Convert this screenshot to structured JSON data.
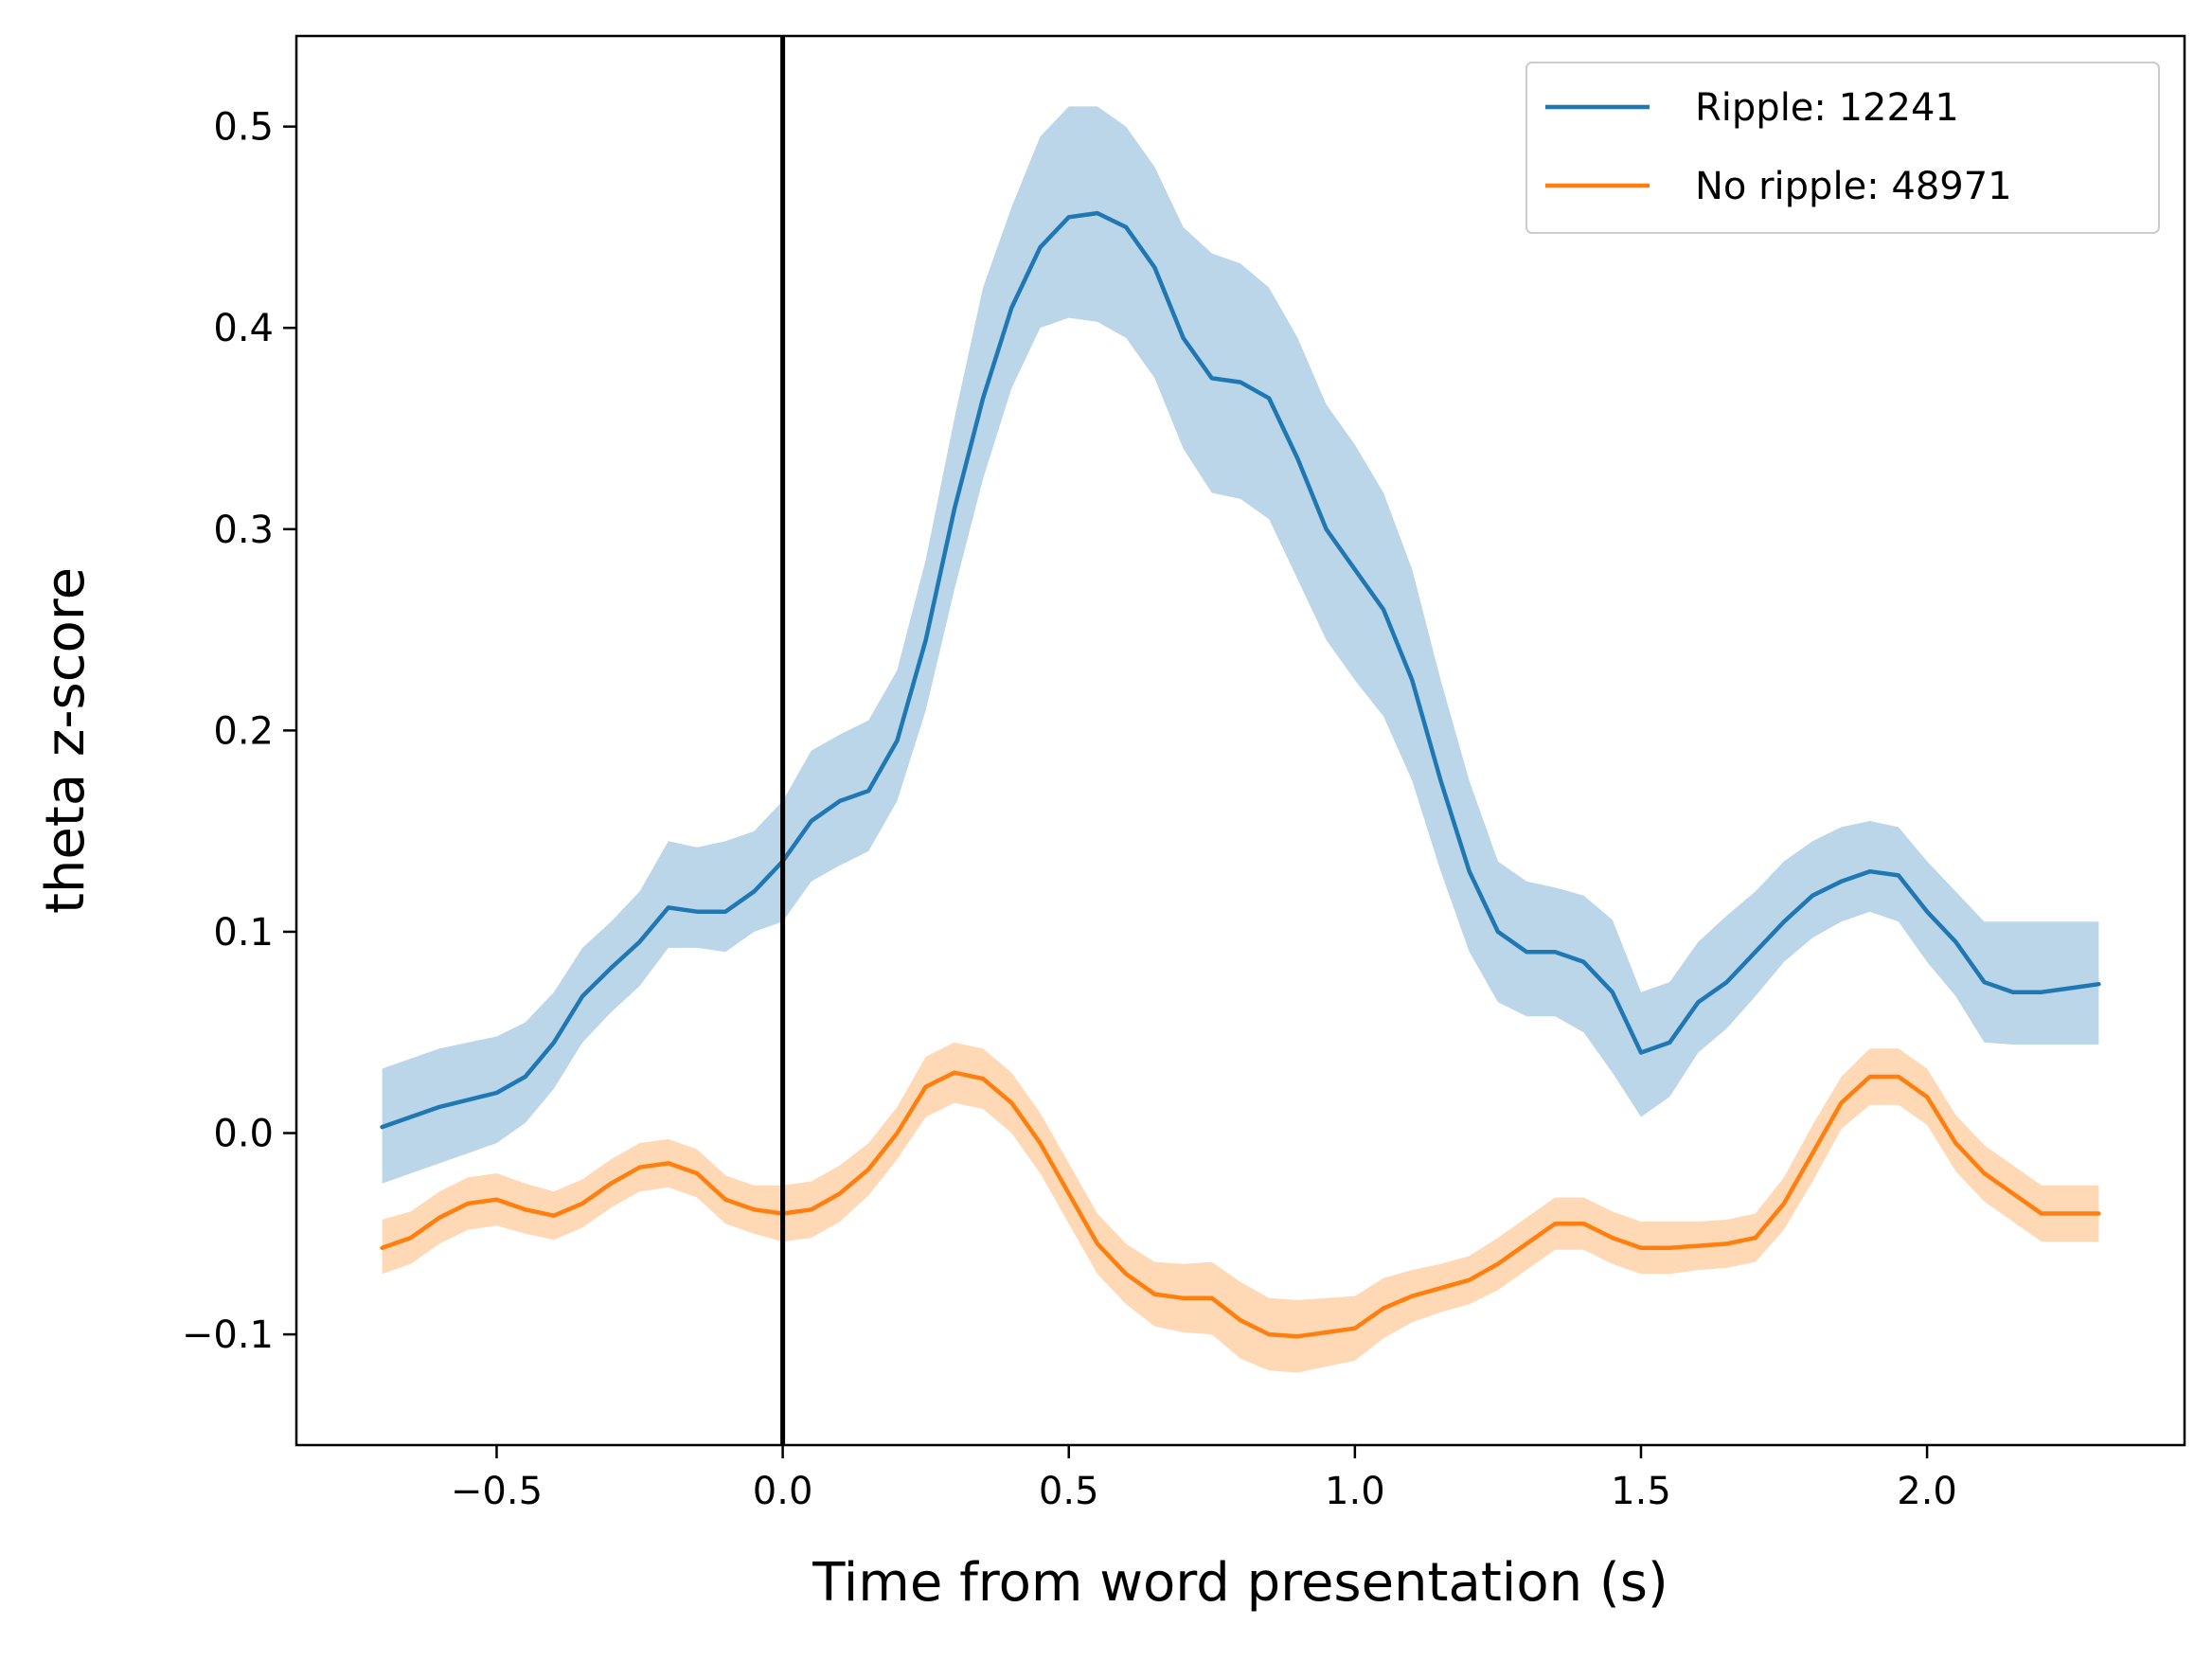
{
  "chart_data": {
    "type": "line",
    "title": "",
    "xlabel": "Time from word presentation (s)",
    "ylabel": "theta z-score",
    "xlim": [
      -0.85,
      2.45
    ],
    "ylim": [
      -0.155,
      0.545
    ],
    "xticks": [
      -0.5,
      0.0,
      0.5,
      1.0,
      1.5,
      2.0
    ],
    "xtick_labels": [
      "−0.5",
      "0.0",
      "0.5",
      "1.0",
      "1.5",
      "2.0"
    ],
    "yticks": [
      -0.1,
      0.0,
      0.1,
      0.2,
      0.3,
      0.4,
      0.5
    ],
    "ytick_labels": [
      "−0.1",
      "0.0",
      "0.1",
      "0.2",
      "0.3",
      "0.4",
      "0.5"
    ],
    "grid": false,
    "legend_position": "top-right",
    "vline": {
      "x": 0.0,
      "color": "#000000"
    },
    "series": [
      {
        "name": "Ripple: 12241",
        "color": "#1f77b4",
        "band_color": "#1f77b4",
        "x": [
          -0.7,
          -0.6,
          -0.5,
          -0.45,
          -0.4,
          -0.35,
          -0.3,
          -0.25,
          -0.2,
          -0.15,
          -0.1,
          -0.05,
          0.0,
          0.05,
          0.1,
          0.15,
          0.2,
          0.25,
          0.3,
          0.35,
          0.4,
          0.45,
          0.5,
          0.55,
          0.6,
          0.65,
          0.7,
          0.75,
          0.8,
          0.85,
          0.9,
          0.95,
          1.0,
          1.05,
          1.1,
          1.15,
          1.2,
          1.25,
          1.3,
          1.35,
          1.4,
          1.45,
          1.5,
          1.55,
          1.6,
          1.65,
          1.7,
          1.75,
          1.8,
          1.85,
          1.9,
          1.95,
          2.0,
          2.05,
          2.1,
          2.15,
          2.2,
          2.25,
          2.3
        ],
        "y": [
          0.003,
          0.013,
          0.02,
          0.028,
          0.045,
          0.068,
          0.082,
          0.095,
          0.112,
          0.11,
          0.11,
          0.12,
          0.135,
          0.155,
          0.165,
          0.17,
          0.195,
          0.245,
          0.31,
          0.365,
          0.41,
          0.44,
          0.455,
          0.457,
          0.45,
          0.43,
          0.395,
          0.375,
          0.373,
          0.365,
          0.335,
          0.3,
          0.28,
          0.26,
          0.225,
          0.175,
          0.13,
          0.1,
          0.09,
          0.09,
          0.085,
          0.07,
          0.04,
          0.045,
          0.065,
          0.075,
          0.09,
          0.105,
          0.118,
          0.125,
          0.13,
          0.128,
          0.11,
          0.095,
          0.075,
          0.07,
          0.07,
          0.072,
          0.074
        ],
        "lower": [
          -0.025,
          -0.015,
          -0.005,
          0.005,
          0.022,
          0.045,
          0.06,
          0.073,
          0.092,
          0.092,
          0.09,
          0.1,
          0.105,
          0.125,
          0.133,
          0.14,
          0.165,
          0.21,
          0.27,
          0.325,
          0.37,
          0.4,
          0.405,
          0.403,
          0.395,
          0.375,
          0.34,
          0.318,
          0.315,
          0.305,
          0.275,
          0.245,
          0.225,
          0.207,
          0.175,
          0.13,
          0.09,
          0.065,
          0.058,
          0.058,
          0.05,
          0.03,
          0.008,
          0.018,
          0.04,
          0.052,
          0.068,
          0.085,
          0.097,
          0.105,
          0.11,
          0.105,
          0.085,
          0.068,
          0.045,
          0.044,
          0.044,
          0.044,
          0.044
        ],
        "upper": [
          0.032,
          0.042,
          0.048,
          0.055,
          0.07,
          0.092,
          0.105,
          0.12,
          0.145,
          0.142,
          0.145,
          0.15,
          0.165,
          0.19,
          0.198,
          0.205,
          0.23,
          0.285,
          0.355,
          0.42,
          0.46,
          0.495,
          0.51,
          0.51,
          0.5,
          0.48,
          0.45,
          0.437,
          0.432,
          0.42,
          0.395,
          0.362,
          0.342,
          0.318,
          0.28,
          0.225,
          0.175,
          0.135,
          0.125,
          0.122,
          0.118,
          0.106,
          0.07,
          0.075,
          0.095,
          0.108,
          0.12,
          0.135,
          0.145,
          0.152,
          0.155,
          0.152,
          0.135,
          0.12,
          0.105,
          0.105,
          0.105,
          0.105,
          0.105
        ]
      },
      {
        "name": "No ripple: 48971",
        "color": "#ff7f0e",
        "band_color": "#ff7f0e",
        "x": [
          -0.7,
          -0.65,
          -0.6,
          -0.55,
          -0.5,
          -0.45,
          -0.4,
          -0.35,
          -0.3,
          -0.25,
          -0.2,
          -0.15,
          -0.1,
          -0.05,
          0.0,
          0.05,
          0.1,
          0.15,
          0.2,
          0.25,
          0.3,
          0.35,
          0.4,
          0.45,
          0.5,
          0.55,
          0.6,
          0.65,
          0.7,
          0.75,
          0.8,
          0.85,
          0.9,
          0.95,
          1.0,
          1.05,
          1.1,
          1.15,
          1.2,
          1.25,
          1.3,
          1.35,
          1.4,
          1.45,
          1.5,
          1.55,
          1.6,
          1.65,
          1.7,
          1.75,
          1.8,
          1.85,
          1.9,
          1.95,
          2.0,
          2.05,
          2.1,
          2.15,
          2.2,
          2.25,
          2.3
        ],
        "y": [
          -0.057,
          -0.052,
          -0.042,
          -0.035,
          -0.033,
          -0.038,
          -0.041,
          -0.035,
          -0.025,
          -0.017,
          -0.015,
          -0.02,
          -0.033,
          -0.038,
          -0.04,
          -0.038,
          -0.03,
          -0.018,
          0.0,
          0.023,
          0.03,
          0.027,
          0.015,
          -0.005,
          -0.03,
          -0.055,
          -0.07,
          -0.08,
          -0.082,
          -0.082,
          -0.093,
          -0.1,
          -0.101,
          -0.099,
          -0.097,
          -0.087,
          -0.081,
          -0.077,
          -0.073,
          -0.065,
          -0.055,
          -0.045,
          -0.045,
          -0.052,
          -0.057,
          -0.057,
          -0.056,
          -0.055,
          -0.052,
          -0.035,
          -0.01,
          0.015,
          0.028,
          0.028,
          0.018,
          -0.005,
          -0.02,
          -0.03,
          -0.04,
          -0.04,
          -0.04
        ],
        "lower": [
          -0.07,
          -0.065,
          -0.055,
          -0.048,
          -0.046,
          -0.05,
          -0.053,
          -0.047,
          -0.037,
          -0.029,
          -0.027,
          -0.032,
          -0.045,
          -0.05,
          -0.054,
          -0.052,
          -0.044,
          -0.031,
          -0.013,
          0.008,
          0.015,
          0.012,
          0.0,
          -0.02,
          -0.045,
          -0.07,
          -0.085,
          -0.096,
          -0.099,
          -0.1,
          -0.112,
          -0.118,
          -0.119,
          -0.116,
          -0.113,
          -0.102,
          -0.094,
          -0.089,
          -0.085,
          -0.078,
          -0.068,
          -0.058,
          -0.058,
          -0.065,
          -0.07,
          -0.07,
          -0.068,
          -0.067,
          -0.064,
          -0.048,
          -0.024,
          0.002,
          0.014,
          0.014,
          0.004,
          -0.019,
          -0.034,
          -0.044,
          -0.054,
          -0.054,
          -0.054
        ],
        "upper": [
          -0.043,
          -0.039,
          -0.029,
          -0.022,
          -0.02,
          -0.025,
          -0.029,
          -0.023,
          -0.013,
          -0.005,
          -0.003,
          -0.008,
          -0.021,
          -0.026,
          -0.026,
          -0.024,
          -0.016,
          -0.005,
          0.013,
          0.038,
          0.045,
          0.042,
          0.03,
          0.01,
          -0.015,
          -0.04,
          -0.055,
          -0.064,
          -0.065,
          -0.064,
          -0.074,
          -0.082,
          -0.083,
          -0.082,
          -0.081,
          -0.072,
          -0.068,
          -0.065,
          -0.061,
          -0.052,
          -0.042,
          -0.032,
          -0.032,
          -0.039,
          -0.044,
          -0.044,
          -0.044,
          -0.043,
          -0.04,
          -0.022,
          0.004,
          0.028,
          0.042,
          0.042,
          0.032,
          0.009,
          -0.006,
          -0.016,
          -0.026,
          -0.026,
          -0.026
        ]
      }
    ]
  }
}
